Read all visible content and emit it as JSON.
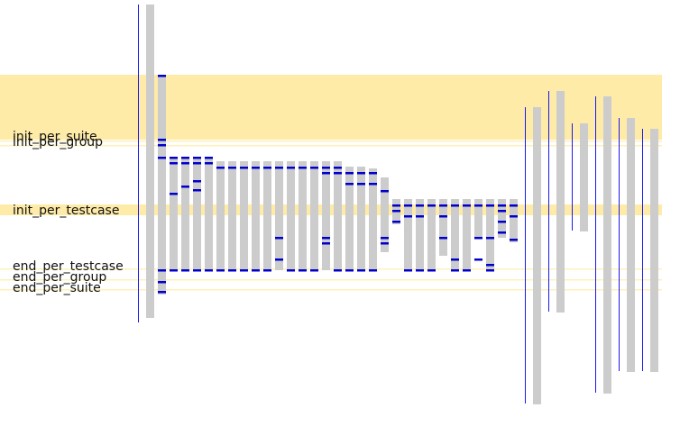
{
  "phase_labels": {
    "init_per_suite": "init_per_suite",
    "init_per_group": "init_per_group",
    "init_per_testcase": "init_per_testcase",
    "end_per_testcase": "end_per_testcase",
    "end_per_group": "end_per_group",
    "end_per_suite": "end_per_suite"
  },
  "colors": {
    "band": "#ffeba8",
    "band_line": "#fff0b8",
    "bar": "#cccccc",
    "marker": "#0000cc",
    "thin_line": "#1a1aee"
  }
}
